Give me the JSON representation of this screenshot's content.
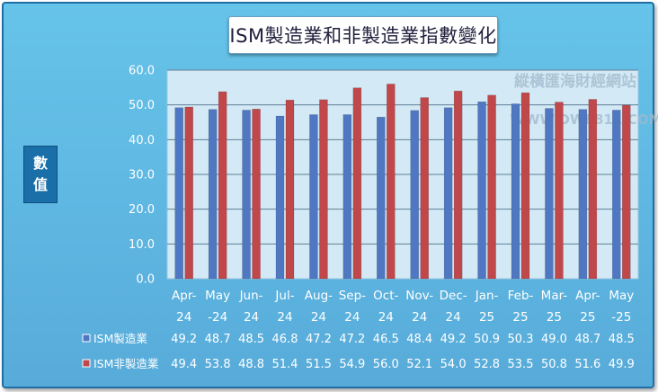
{
  "title": "ISM製造業和非製造業指數變化",
  "ylabel_chars": [
    "數",
    "值"
  ],
  "watermark": {
    "line1": "縱橫匯海財經網站",
    "line2": "WWW.DW8811.COM"
  },
  "colors": {
    "background": "#5fb8e2",
    "plot_area": "#d3eaf6",
    "series_1": "#5077c2",
    "series_2": "#c0474a",
    "title_badge": "#ffffff",
    "ylabel_badge": "#1a6fa8"
  },
  "chart_data": {
    "type": "bar",
    "title": "ISM製造業和非製造業指數變化",
    "ylabel": "數值",
    "xlabel": "",
    "ylim": [
      0,
      60
    ],
    "yticks": [
      "0.0",
      "10.0",
      "20.0",
      "30.0",
      "40.0",
      "50.0",
      "60.0"
    ],
    "grid": true,
    "legend": "data table below chart",
    "categories": [
      [
        "Apr-",
        "24"
      ],
      [
        "May",
        "-24"
      ],
      [
        "Jun-",
        "24"
      ],
      [
        "Jul-",
        "24"
      ],
      [
        "Aug-",
        "24"
      ],
      [
        "Sep-",
        "24"
      ],
      [
        "Oct-",
        "24"
      ],
      [
        "Nov-",
        "24"
      ],
      [
        "Dec-",
        "24"
      ],
      [
        "Jan-",
        "25"
      ],
      [
        "Feb-",
        "25"
      ],
      [
        "Mar-",
        "25"
      ],
      [
        "Apr-",
        "25"
      ],
      [
        "May",
        "-25"
      ]
    ],
    "series": [
      {
        "name": "ISM製造業",
        "color": "#5077c2",
        "values": [
          49.2,
          48.7,
          48.5,
          46.8,
          47.2,
          47.2,
          46.5,
          48.4,
          49.2,
          50.9,
          50.3,
          49.0,
          48.7,
          48.5
        ],
        "labels": [
          "49.2",
          "48.7",
          "48.5",
          "46.8",
          "47.2",
          "47.2",
          "46.5",
          "48.4",
          "49.2",
          "50.9",
          "50.3",
          "49.0",
          "48.7",
          "48.5"
        ]
      },
      {
        "name": "ISM非製造業",
        "color": "#c0474a",
        "values": [
          49.4,
          53.8,
          48.8,
          51.4,
          51.5,
          54.9,
          56.0,
          52.1,
          54.0,
          52.8,
          53.5,
          50.8,
          51.6,
          49.9
        ],
        "labels": [
          "49.4",
          "53.8",
          "48.8",
          "51.4",
          "51.5",
          "54.9",
          "56.0",
          "52.1",
          "54.0",
          "52.8",
          "53.5",
          "50.8",
          "51.6",
          "49.9"
        ]
      }
    ]
  }
}
